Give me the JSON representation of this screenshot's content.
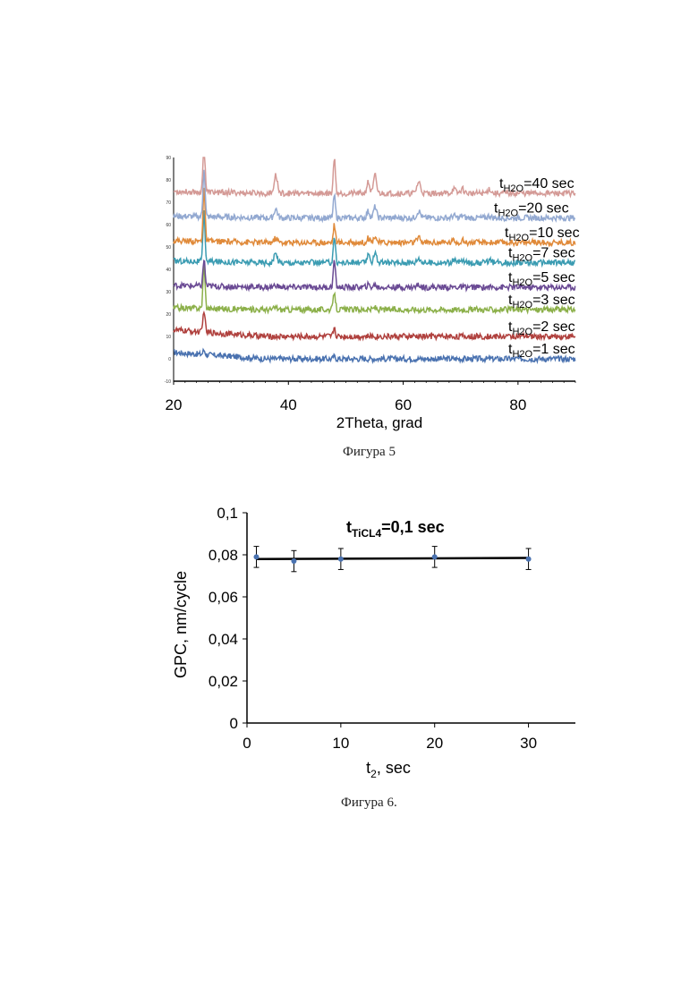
{
  "figure5": {
    "caption": "Фигура 5",
    "chart_data": {
      "type": "line",
      "xlabel": "2Theta, grad",
      "xlim": [
        20,
        90
      ],
      "xticks": [
        "20",
        "40",
        "60",
        "80"
      ],
      "ytick_labels": [
        "-10",
        "0",
        "10",
        "20",
        "30",
        "40",
        "50",
        "60",
        "70",
        "80",
        "90"
      ],
      "ylim": [
        -10,
        90
      ],
      "peaks_2theta": [
        25.3,
        37.8,
        48.0,
        53.9,
        55.1,
        62.7,
        68.8,
        70.3,
        75.0
      ],
      "series": [
        {
          "label_t": "t",
          "label_sub": "H2O",
          "label_rest": "=1 sec",
          "offset": 0,
          "color": "#4a72b0"
        },
        {
          "label_t": "t",
          "label_sub": "H2O",
          "label_rest": "=2 sec",
          "offset": 10,
          "color": "#b0413e"
        },
        {
          "label_t": "t",
          "label_sub": "H2O",
          "label_rest": "=3 sec",
          "offset": 22,
          "color": "#8cb04a"
        },
        {
          "label_t": "t",
          "label_sub": "H2O",
          "label_rest": "=5 sec",
          "offset": 32,
          "color": "#6a4a94"
        },
        {
          "label_t": "t",
          "label_sub": "H2O",
          "label_rest": "=7 sec",
          "offset": 43,
          "color": "#3b9cb2"
        },
        {
          "label_t": "t",
          "label_sub": "H2O",
          "label_rest": "=10 sec",
          "offset": 52,
          "color": "#e08a3a"
        },
        {
          "label_t": "t",
          "label_sub": "H2O",
          "label_rest": "=20 sec",
          "offset": 63,
          "color": "#93a9d1"
        },
        {
          "label_t": "t",
          "label_sub": "H2O",
          "label_rest": "=40 sec",
          "offset": 74,
          "color": "#d49a96"
        }
      ]
    }
  },
  "figure6": {
    "caption": "Фигура 6.",
    "chart_data": {
      "type": "scatter",
      "annotation_t": "t",
      "annotation_sub": "TiCL4",
      "annotation_rest": "=0,1 sec",
      "xlabel_t": "t",
      "xlabel_sub": "2",
      "xlabel_rest": ", sec",
      "ylabel": "GPC, nm/cycle",
      "xlim": [
        0,
        35
      ],
      "ylim": [
        0,
        0.1
      ],
      "xticks": [
        "0",
        "10",
        "20",
        "30"
      ],
      "yticks": [
        "0",
        "0,02",
        "0,04",
        "0,06",
        "0,08",
        "0,1"
      ],
      "x": [
        1,
        5,
        10,
        20,
        30
      ],
      "y": [
        0.079,
        0.077,
        0.078,
        0.079,
        0.078
      ],
      "error": [
        0.005,
        0.005,
        0.005,
        0.005,
        0.005
      ],
      "trendline": [
        0.078,
        0.0785
      ],
      "color": "#4a72b0"
    }
  }
}
